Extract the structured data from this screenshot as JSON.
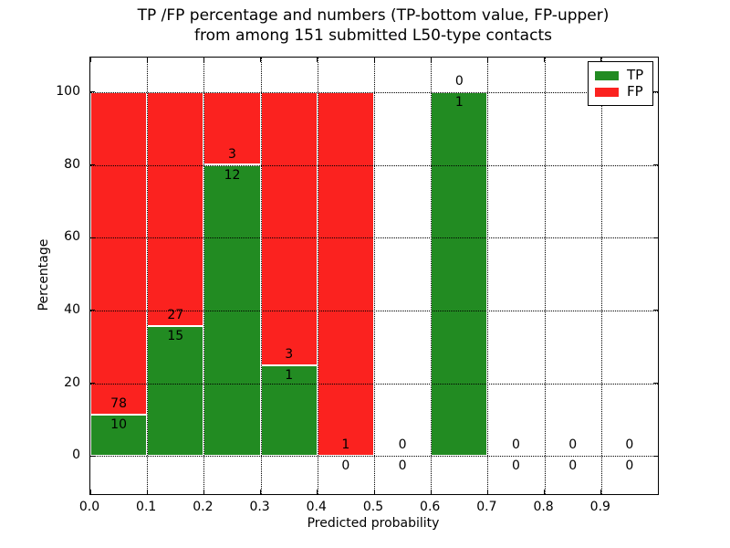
{
  "chart_data": {
    "type": "bar",
    "stacked": true,
    "title": "TP /FP percentage and numbers (TP-bottom value, FP-upper)\nfrom among 151 submitted L50-type contacts",
    "title_line1": "TP /FP percentage and numbers (TP-bottom value, FP-upper)",
    "title_line2": "from among 151 submitted L50-type contacts",
    "xlabel": "Predicted probability",
    "ylabel": "Percentage",
    "xlim": [
      0.0,
      1.0
    ],
    "ylim": [
      -10.5,
      109.5
    ],
    "grid": true,
    "xticks": [
      0.0,
      0.1,
      0.2,
      0.3,
      0.4,
      0.5,
      0.6,
      0.7,
      0.8,
      0.9
    ],
    "xtick_labels": [
      "0.0",
      "0.1",
      "0.2",
      "0.3",
      "0.4",
      "0.5",
      "0.6",
      "0.7",
      "0.8",
      "0.9"
    ],
    "yticks": [
      0,
      20,
      40,
      60,
      80,
      100
    ],
    "ytick_labels": [
      "0",
      "20",
      "40",
      "60",
      "80",
      "100"
    ],
    "legend": {
      "position": "upper right",
      "entries": [
        {
          "label": "TP",
          "color": "#228b22"
        },
        {
          "label": "FP",
          "color": "#fb221f"
        }
      ]
    },
    "colors": {
      "tp": "#228b22",
      "fp": "#fb221f",
      "grid": "#000000",
      "text": "#000000",
      "background": "#ffffff"
    },
    "bins": [
      {
        "x_start": 0.0,
        "x_end": 0.1,
        "tp_count": 10,
        "fp_count": 78,
        "tp_pct": 11.36,
        "fp_pct": 88.64
      },
      {
        "x_start": 0.1,
        "x_end": 0.2,
        "tp_count": 15,
        "fp_count": 27,
        "tp_pct": 35.71,
        "fp_pct": 64.29
      },
      {
        "x_start": 0.2,
        "x_end": 0.3,
        "tp_count": 12,
        "fp_count": 3,
        "tp_pct": 80.0,
        "fp_pct": 20.0
      },
      {
        "x_start": 0.3,
        "x_end": 0.4,
        "tp_count": 1,
        "fp_count": 3,
        "tp_pct": 25.0,
        "fp_pct": 75.0
      },
      {
        "x_start": 0.4,
        "x_end": 0.5,
        "tp_count": 0,
        "fp_count": 1,
        "tp_pct": 0.0,
        "fp_pct": 100.0
      },
      {
        "x_start": 0.5,
        "x_end": 0.6,
        "tp_count": 0,
        "fp_count": 0,
        "tp_pct": 0.0,
        "fp_pct": 0.0
      },
      {
        "x_start": 0.6,
        "x_end": 0.7,
        "tp_count": 1,
        "fp_count": 0,
        "tp_pct": 100.0,
        "fp_pct": 0.0
      },
      {
        "x_start": 0.7,
        "x_end": 0.8,
        "tp_count": 0,
        "fp_count": 0,
        "tp_pct": 0.0,
        "fp_pct": 0.0
      },
      {
        "x_start": 0.8,
        "x_end": 0.9,
        "tp_count": 0,
        "fp_count": 0,
        "tp_pct": 0.0,
        "fp_pct": 0.0
      },
      {
        "x_start": 0.9,
        "x_end": 1.0,
        "tp_count": 0,
        "fp_count": 0,
        "tp_pct": 0.0,
        "fp_pct": 0.0
      }
    ]
  }
}
